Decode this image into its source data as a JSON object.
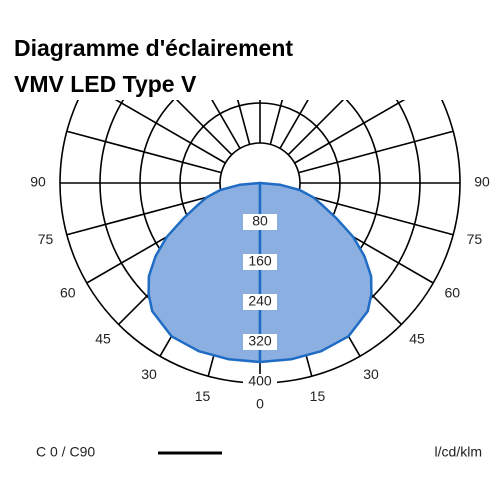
{
  "chart_data": {
    "type": "polar",
    "title": [
      "Diagramme d'éclairement",
      "VMV LED Type V"
    ],
    "rlim": [
      0,
      400
    ],
    "rticks": [
      80,
      160,
      240,
      320,
      400
    ],
    "angle_ticks": [
      0,
      15,
      30,
      45,
      60,
      75,
      90
    ],
    "series": [
      {
        "name": "C 0 / C90",
        "color": "#1f6cc4",
        "fill": "#8cafe2",
        "angles": [
          0,
          10,
          20,
          30,
          40,
          45,
          50,
          55,
          60,
          65,
          70,
          75,
          80,
          85,
          90
        ],
        "values": [
          358,
          358,
          358,
          354,
          335,
          315,
          290,
          255,
          215,
          170,
          135,
          110,
          80,
          40,
          0
        ]
      }
    ],
    "unit": "l/cd/klm"
  }
}
